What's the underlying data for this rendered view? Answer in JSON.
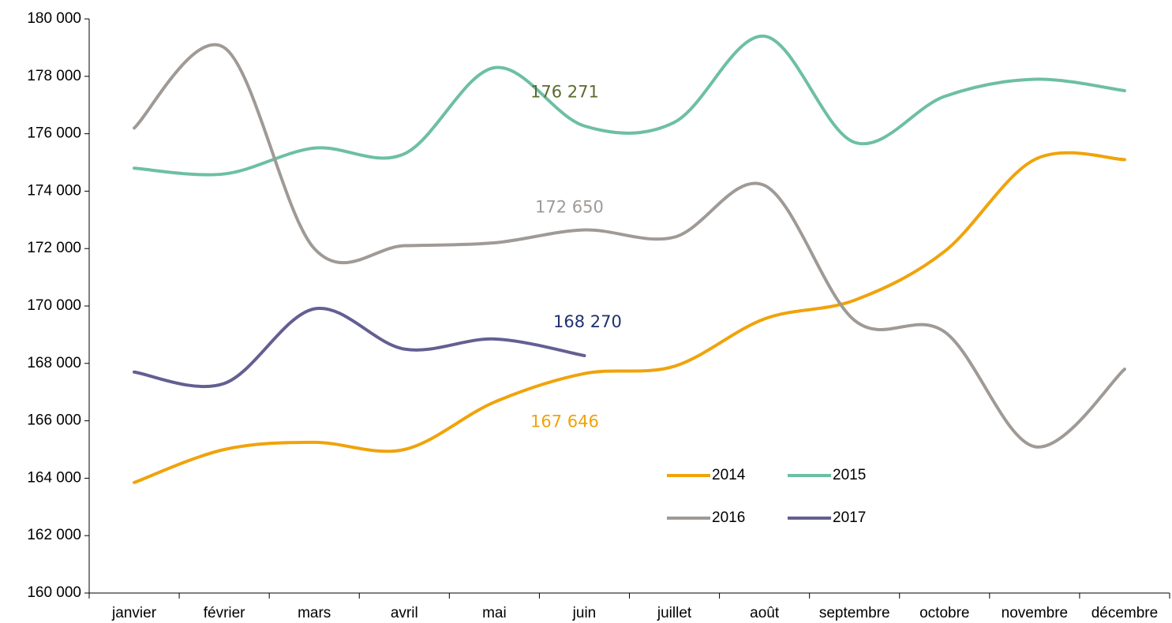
{
  "chart_data": {
    "type": "line",
    "categories": [
      "janvier",
      "février",
      "mars",
      "avril",
      "mai",
      "juin",
      "juillet",
      "août",
      "septembre",
      "octobre",
      "novembre",
      "décembre"
    ],
    "series": [
      {
        "name": "2014",
        "color": "#f0a30a",
        "label_color": "#f0a30a",
        "values": [
          163850,
          165000,
          165250,
          165000,
          166650,
          167646,
          167900,
          169550,
          170200,
          171900,
          175100,
          175100
        ],
        "value_labels": [
          null,
          null,
          null,
          null,
          null,
          "167 646",
          null,
          null,
          null,
          null,
          null,
          null
        ]
      },
      {
        "name": "2015",
        "color": "#6dbfa3",
        "label_color": "#5a6b2c",
        "values": [
          174800,
          174600,
          175500,
          175300,
          178300,
          176271,
          176400,
          179400,
          175700,
          177300,
          177900,
          177500
        ],
        "value_labels": [
          null,
          null,
          null,
          null,
          null,
          "176 271",
          null,
          null,
          null,
          null,
          null,
          null
        ]
      },
      {
        "name": "2016",
        "color": "#a09a96",
        "label_color": "#a09a96",
        "values": [
          176200,
          179000,
          172000,
          172100,
          172200,
          172650,
          172400,
          174200,
          169500,
          169100,
          165100,
          167800
        ],
        "value_labels": [
          null,
          null,
          null,
          null,
          null,
          "172 650",
          null,
          null,
          null,
          null,
          null,
          null
        ]
      },
      {
        "name": "2017",
        "color": "#635f92",
        "label_color": "#1f3070",
        "values": [
          167700,
          167300,
          169900,
          168500,
          168850,
          168270,
          null,
          null,
          null,
          null,
          null,
          null
        ],
        "value_labels": [
          null,
          null,
          null,
          null,
          null,
          "168 270",
          null,
          null,
          null,
          null,
          null,
          null
        ]
      }
    ],
    "ylim": [
      160000,
      180000
    ],
    "yticks": [
      {
        "value": 160000,
        "label": "160 000"
      },
      {
        "value": 162000,
        "label": "162 000"
      },
      {
        "value": 164000,
        "label": "164 000"
      },
      {
        "value": 166000,
        "label": "166 000"
      },
      {
        "value": 168000,
        "label": "168 000"
      },
      {
        "value": 170000,
        "label": "170 000"
      },
      {
        "value": 172000,
        "label": "172 000"
      },
      {
        "value": 174000,
        "label": "174 000"
      },
      {
        "value": 176000,
        "label": "176 000"
      },
      {
        "value": 178000,
        "label": "178 000"
      },
      {
        "value": 180000,
        "label": "180 000"
      }
    ],
    "grid": false,
    "smooth": true,
    "legend": "bottom"
  }
}
